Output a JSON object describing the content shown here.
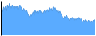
{
  "chart_data": {
    "type": "area",
    "values": [
      72,
      78,
      68,
      82,
      75,
      85,
      70,
      88,
      80,
      92,
      85,
      78,
      88,
      82,
      76,
      84,
      79,
      86,
      73,
      80,
      88,
      82,
      76,
      70,
      78,
      72,
      68,
      74,
      65,
      58,
      52,
      60,
      55,
      62,
      68,
      58,
      72,
      65,
      70,
      62,
      68,
      74,
      65,
      70,
      62,
      68,
      72,
      65,
      70,
      75,
      68,
      80,
      72,
      78,
      70,
      82,
      75,
      80,
      72,
      68,
      74,
      65,
      70,
      62,
      58,
      52,
      48,
      55,
      50,
      58,
      52,
      48,
      42,
      50,
      45,
      52,
      46,
      42,
      48,
      44,
      50,
      46,
      52,
      45,
      48,
      42,
      38,
      44,
      40,
      46,
      42,
      38,
      44,
      40,
      36,
      42,
      38,
      44,
      40,
      46
    ],
    "color": "#5aabff",
    "ylim": [
      0,
      100
    ],
    "tick_labels": false
  }
}
